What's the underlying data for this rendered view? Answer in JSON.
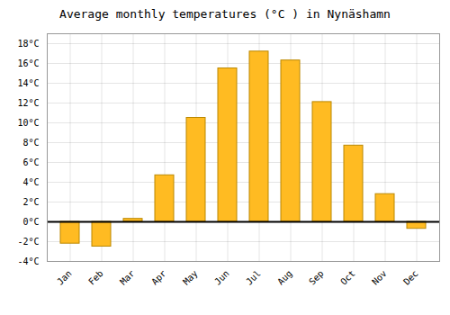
{
  "chart_data": {
    "type": "bar",
    "title": "Average monthly temperatures (°C ) in Nynäshamn",
    "categories": [
      "Jan",
      "Feb",
      "Mar",
      "Apr",
      "May",
      "Jun",
      "Jul",
      "Aug",
      "Sep",
      "Oct",
      "Nov",
      "Dec"
    ],
    "values": [
      -2.2,
      -2.5,
      0.3,
      4.7,
      10.5,
      15.5,
      17.2,
      16.3,
      12.1,
      7.7,
      2.8,
      -0.7
    ],
    "color": "#FFBB22",
    "ylim": [
      -4,
      19
    ],
    "yticks": [
      {
        "value": -4,
        "label": "-4°C"
      },
      {
        "value": -2,
        "label": "-2°C"
      },
      {
        "value": 0,
        "label": "0°C"
      },
      {
        "value": 2,
        "label": "2°C"
      },
      {
        "value": 4,
        "label": "4°C"
      },
      {
        "value": 6,
        "label": "6°C"
      },
      {
        "value": 8,
        "label": "8°C"
      },
      {
        "value": 10,
        "label": "10°C"
      },
      {
        "value": 12,
        "label": "12°C"
      },
      {
        "value": 14,
        "label": "14°C"
      },
      {
        "value": 16,
        "label": "16°C"
      },
      {
        "value": 18,
        "label": "18°C"
      }
    ],
    "grid": true
  }
}
